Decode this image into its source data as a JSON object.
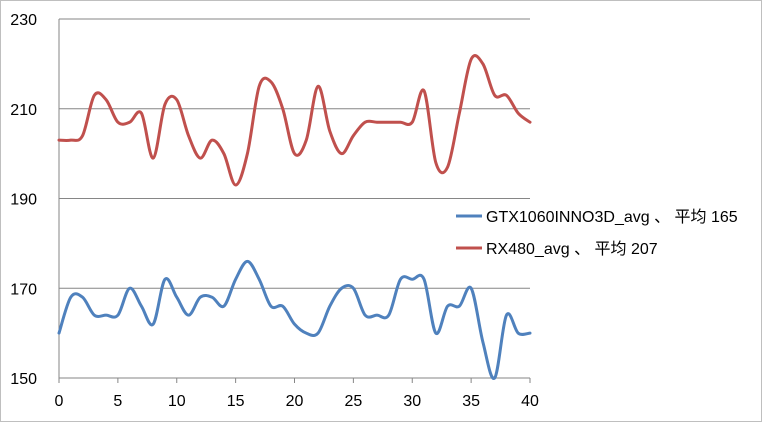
{
  "chart_data": {
    "type": "line",
    "title": "",
    "xlabel": "",
    "ylabel": "",
    "xlim": [
      0,
      40
    ],
    "ylim": [
      150,
      230
    ],
    "x_ticks": [
      "0",
      "5",
      "10",
      "15",
      "20",
      "25",
      "30",
      "35",
      "40"
    ],
    "y_ticks": [
      "150",
      "170",
      "190",
      "210",
      "230"
    ],
    "grid": "horizontal",
    "legend_position": "right",
    "x": [
      0,
      1,
      2,
      3,
      4,
      5,
      6,
      7,
      8,
      9,
      10,
      11,
      12,
      13,
      14,
      15,
      16,
      17,
      18,
      19,
      20,
      21,
      22,
      23,
      24,
      25,
      26,
      27,
      28,
      29,
      30,
      31,
      32,
      33,
      34,
      35,
      36,
      37,
      38,
      39,
      40
    ],
    "series": [
      {
        "name": "GTX1060INNO3D_avg 、 平均 165",
        "color": "#4f81bd",
        "values": [
          160,
          168,
          168,
          164,
          164,
          164,
          170,
          166,
          162,
          172,
          168,
          164,
          168,
          168,
          166,
          172,
          176,
          172,
          166,
          166,
          162,
          160,
          160,
          166,
          170,
          170,
          164,
          164,
          164,
          172,
          172,
          172,
          160,
          166,
          166,
          170,
          158,
          150,
          164,
          160,
          160
        ]
      },
      {
        "name": "RX480_avg 、 平均 207",
        "color": "#c0504d",
        "values": [
          203,
          203,
          204,
          213,
          212,
          207,
          207,
          209,
          199,
          211,
          212,
          204,
          199,
          203,
          200,
          193,
          200,
          215,
          216,
          210,
          200,
          203,
          215,
          205,
          200,
          204,
          207,
          207,
          207,
          207,
          207,
          214,
          198,
          197,
          209,
          221,
          220,
          213,
          213,
          209,
          207
        ]
      }
    ]
  }
}
